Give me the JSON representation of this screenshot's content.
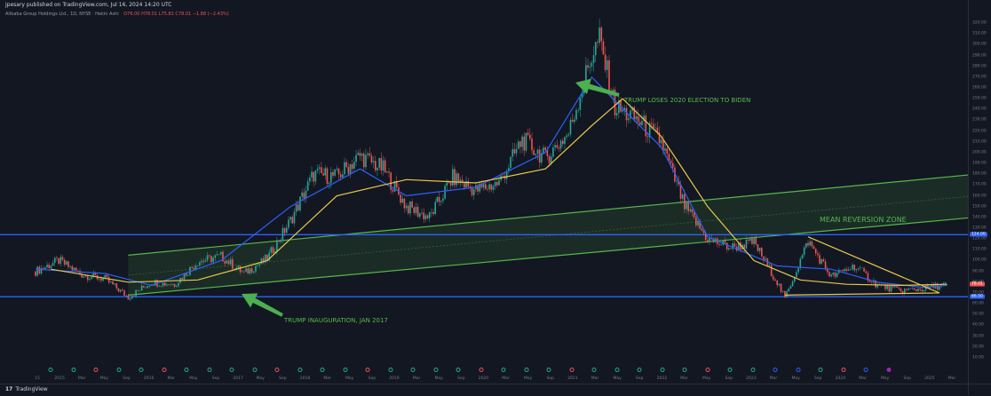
{
  "header": {
    "published": "jpesary published on TradingView.com, Jul 16, 2024 14:20 UTC",
    "symbol": "Alibaba Group Holdings Ltd., 1D, NYSE · Hekin Ashi",
    "values": "O76.00 H78.01 L75.81 C78.01 −1.88 (−2.43%)"
  },
  "annotations": {
    "election": "TRUMP LOSES 2020 ELECTION TO BIDEN",
    "inauguration": "TRUMP INAUGURATION, JAN 2017",
    "zone": "MEAN REVERSION ZONE"
  },
  "footer": {
    "logo_mark": "17",
    "logo_text": "TradingView"
  },
  "colors": {
    "background": "#131722",
    "up": "#26a69a",
    "down": "#ef5350",
    "fast_ma": "#2962ff",
    "slow_ma": "#e6c84a",
    "channel": "#56b84a",
    "horizontal": "#2962ff",
    "arrow": "#4caf50"
  },
  "chart_data": {
    "type": "line",
    "title": "Alibaba Group Holdings Ltd.",
    "xlabel": "",
    "ylabel": "",
    "x_ticks": [
      "15",
      "2015",
      "Mar",
      "May",
      "Sep",
      "2016",
      "Mar",
      "May",
      "Sep",
      "2017",
      "May",
      "Sep",
      "2018",
      "Mar",
      "May",
      "Sep",
      "2019",
      "Mar",
      "May",
      "Sep",
      "2020",
      "Mar",
      "May",
      "Sep",
      "2021",
      "Mar",
      "May",
      "Sep",
      "2022",
      "Mar",
      "May",
      "Sep",
      "2023",
      "Mar",
      "May",
      "Sep",
      "2024",
      "Mar",
      "May",
      "Sep",
      "2025",
      "Mar"
    ],
    "y_ticks": [
      "320.00",
      "310.00",
      "300.00",
      "290.00",
      "280.00",
      "270.00",
      "260.00",
      "250.00",
      "240.00",
      "230.00",
      "220.00",
      "210.00",
      "200.00",
      "190.00",
      "180.00",
      "170.00",
      "160.00",
      "150.00",
      "140.00",
      "130.00",
      "120.00",
      "110.00",
      "100.00",
      "90.00",
      "80.00",
      "70.00",
      "60.00",
      "50.00",
      "40.00",
      "30.00",
      "20.00",
      "10.00",
      "0.00"
    ],
    "ylim": [
      0,
      325
    ],
    "grid": false,
    "price_series": {
      "name": "Price",
      "x": [
        "2014-09",
        "2014-12",
        "2015-03",
        "2015-06",
        "2015-09",
        "2015-12",
        "2016-03",
        "2016-06",
        "2016-09",
        "2016-12",
        "2017-03",
        "2017-06",
        "2017-09",
        "2017-12",
        "2018-03",
        "2018-06",
        "2018-09",
        "2018-12",
        "2019-03",
        "2019-06",
        "2019-09",
        "2019-12",
        "2020-03",
        "2020-06",
        "2020-09",
        "2020-10",
        "2020-12",
        "2021-03",
        "2021-06",
        "2021-09",
        "2021-12",
        "2022-03",
        "2022-06",
        "2022-09",
        "2022-10",
        "2023-01",
        "2023-04",
        "2023-07",
        "2023-10",
        "2024-01",
        "2024-04",
        "2024-07"
      ],
      "values": [
        90,
        100,
        87,
        83,
        66,
        80,
        78,
        99,
        104,
        88,
        102,
        137,
        180,
        178,
        197,
        185,
        150,
        140,
        177,
        165,
        172,
        212,
        195,
        218,
        290,
        305,
        242,
        230,
        210,
        150,
        120,
        112,
        117,
        80,
        65,
        118,
        85,
        95,
        77,
        72,
        74,
        78
      ]
    },
    "series": [
      {
        "name": "Fast MA",
        "x": [
          "2014-09",
          "2015-06",
          "2015-12",
          "2016-09",
          "2017-06",
          "2018-03",
          "2018-09",
          "2019-06",
          "2020-03",
          "2020-09",
          "2020-12",
          "2021-06",
          "2021-12",
          "2022-09",
          "2023-04",
          "2023-10",
          "2024-04",
          "2024-07"
        ],
        "values": [
          92,
          88,
          77,
          100,
          150,
          185,
          160,
          168,
          200,
          270,
          248,
          205,
          122,
          95,
          92,
          80,
          75,
          77
        ]
      },
      {
        "name": "Slow MA",
        "x": [
          "2014-11",
          "2015-09",
          "2016-06",
          "2017-03",
          "2017-12",
          "2018-09",
          "2019-06",
          "2020-03",
          "2020-09",
          "2021-01",
          "2021-06",
          "2021-12",
          "2022-06",
          "2022-12",
          "2023-06",
          "2024-01",
          "2024-07"
        ],
        "values": [
          92,
          80,
          82,
          100,
          160,
          175,
          172,
          185,
          225,
          250,
          215,
          150,
          100,
          82,
          78,
          77,
          78
        ]
      }
    ],
    "horizontal_levels": [
      124.0,
      66.5
    ],
    "channel": {
      "lower": {
        "x": [
          "2015-09",
          "2025-06"
        ],
        "values": [
          68,
          145
        ]
      },
      "upper": {
        "x": [
          "2015-09",
          "2025-06"
        ],
        "values": [
          105,
          185
        ]
      }
    },
    "triangle": {
      "upper": {
        "x": [
          "2023-01",
          "2024-06"
        ],
        "values": [
          122,
          70
        ]
      },
      "lower": {
        "x": [
          "2022-10",
          "2024-06"
        ],
        "values": [
          68,
          70
        ]
      }
    },
    "price_label": "78.01",
    "level_labels": [
      "124.00",
      "66.50"
    ]
  }
}
